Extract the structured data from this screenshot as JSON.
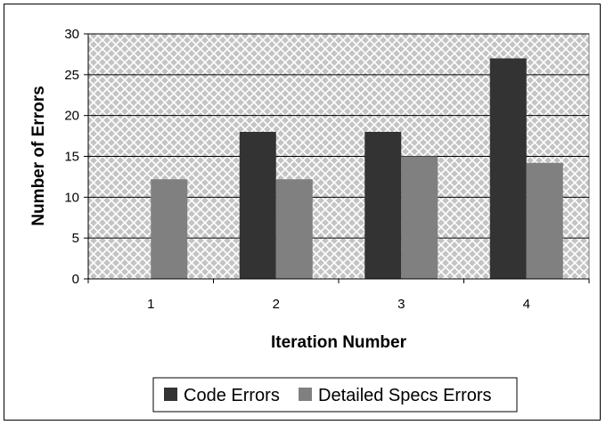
{
  "chart_data": {
    "type": "bar",
    "title": "",
    "xlabel": "Iteration Number",
    "ylabel": "Number of Errors",
    "categories": [
      "1",
      "2",
      "3",
      "4"
    ],
    "series": [
      {
        "name": "Code Errors",
        "values": [
          0,
          18,
          18,
          27
        ],
        "color": "#333333"
      },
      {
        "name": "Detailed Specs Errors",
        "values": [
          12.2,
          12.2,
          15,
          14.2
        ],
        "color": "#808080"
      }
    ],
    "ylim": [
      0,
      30
    ],
    "yticks": [
      "0",
      "5",
      "10",
      "15",
      "20",
      "25",
      "30"
    ],
    "grid": true,
    "legend_position": "bottom",
    "plot_background": "crosshatch gray"
  }
}
